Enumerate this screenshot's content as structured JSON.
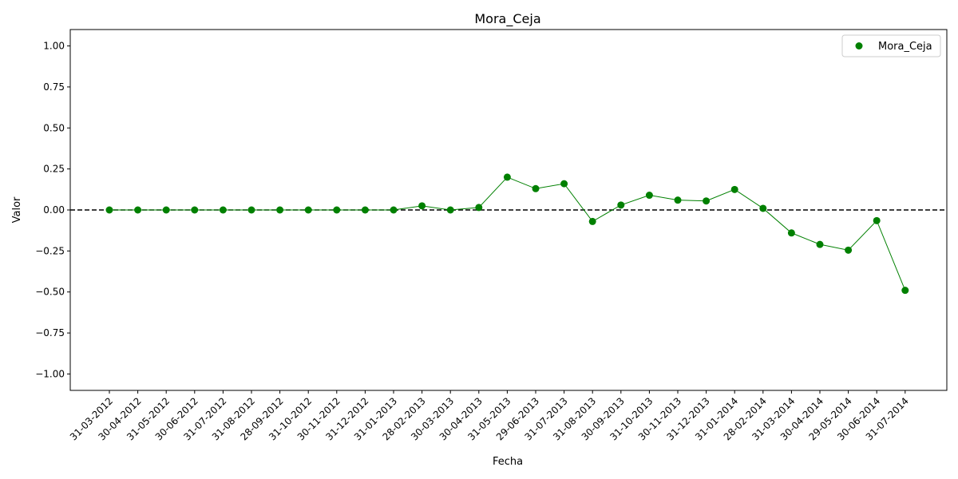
{
  "chart_data": {
    "type": "scatter",
    "title": "Mora_Ceja",
    "xlabel": "Fecha",
    "ylabel": "Valor",
    "ylim": [
      -1.1,
      1.1
    ],
    "yticks": [
      1.0,
      0.75,
      0.5,
      0.25,
      0.0,
      -0.25,
      -0.5,
      -0.75,
      -1.0
    ],
    "ytick_labels": [
      "1.00",
      "0.75",
      "0.50",
      "0.25",
      "0.00",
      "−0.25",
      "−0.50",
      "−0.75",
      "−1.00"
    ],
    "categories": [
      "31-03-2012",
      "30-04-2012",
      "31-05-2012",
      "30-06-2012",
      "31-07-2012",
      "31-08-2012",
      "28-09-2012",
      "31-10-2012",
      "30-11-2012",
      "31-12-2012",
      "31-01-2013",
      "28-02-2013",
      "30-03-2013",
      "30-04-2013",
      "31-05-2013",
      "29-06-2013",
      "31-07-2013",
      "31-08-2013",
      "30-09-2013",
      "31-10-2013",
      "30-11-2013",
      "31-12-2013",
      "31-01-2014",
      "28-02-2014",
      "31-03-2014",
      "30-04-2014",
      "29-05-2014",
      "30-06-2014",
      "31-07-2014"
    ],
    "series": [
      {
        "name": "Mora_Ceja",
        "color": "#008000",
        "values": [
          0.0,
          0.0,
          0.0,
          0.0,
          0.0,
          0.0,
          0.0,
          0.0,
          0.0,
          0.0,
          0.0,
          0.025,
          0.0,
          0.015,
          0.2,
          0.13,
          0.16,
          -0.07,
          0.03,
          0.09,
          0.06,
          0.055,
          0.125,
          0.01,
          -0.14,
          -0.21,
          -0.245,
          -0.065,
          -0.49
        ]
      }
    ],
    "reference_line": {
      "y": 0.0,
      "style": "dashed",
      "color": "#000000"
    },
    "legend": {
      "position": "top-right",
      "entries": [
        "Mora_Ceja"
      ]
    },
    "grid": false
  }
}
